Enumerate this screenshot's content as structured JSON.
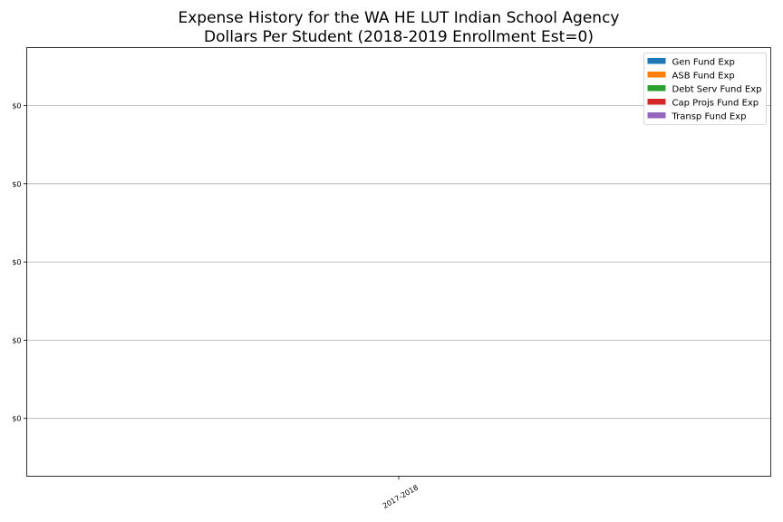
{
  "chart_data": {
    "type": "bar",
    "title": [
      "Expense History for the WA HE LUT Indian School Agency",
      "Dollars Per Student (2018-2019 Enrollment Est=0)"
    ],
    "xlabel": "",
    "ylabel": "",
    "categories": [
      "2017-2018"
    ],
    "series": [
      {
        "name": "Gen Fund Exp",
        "color": "#1f77b4",
        "values": [
          0
        ]
      },
      {
        "name": "ASB Fund Exp",
        "color": "#ff7f0e",
        "values": [
          0
        ]
      },
      {
        "name": "Debt Serv Fund Exp",
        "color": "#2ca02c",
        "values": [
          0
        ]
      },
      {
        "name": "Cap Projs Fund Exp",
        "color": "#d62728",
        "values": [
          0
        ]
      },
      {
        "name": "Transp Fund Exp",
        "color": "#9467bd",
        "values": [
          0
        ]
      }
    ],
    "y_tick_labels": [
      "$0",
      "$0",
      "$0",
      "$0",
      "$0"
    ],
    "grid": "y",
    "legend_position": "top-right",
    "x_tick_rotation": 30
  }
}
